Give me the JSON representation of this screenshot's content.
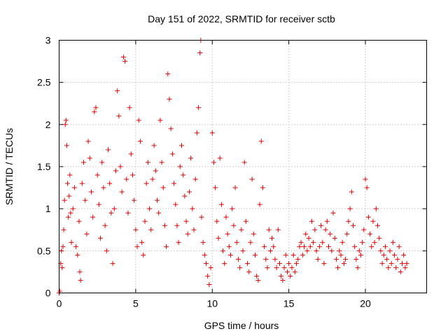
{
  "chart_data": {
    "type": "scatter",
    "title": "Day 151 of 2022, SRMTID for receiver sctb",
    "xlabel": "GPS time / hours",
    "ylabel": "SRMTID / TECUs",
    "xlim": [
      0,
      24
    ],
    "ylim": [
      0,
      3
    ],
    "xticks": [
      0,
      5,
      10,
      15,
      20
    ],
    "xtick_labels": [
      "0",
      "5",
      "10",
      "15",
      "20"
    ],
    "yticks": [
      0,
      0.5,
      1,
      1.5,
      2,
      2.5,
      3
    ],
    "ytick_labels": [
      "0",
      "0.5",
      "1",
      "1.5",
      "2",
      "2.5",
      "3"
    ],
    "grid": true,
    "marker": "+",
    "color": "#e00000",
    "series": [
      {
        "name": "SRMTID",
        "points": [
          [
            0.0,
            0.0
          ],
          [
            0.05,
            0.02
          ],
          [
            0.1,
            0.35
          ],
          [
            0.15,
            0.5
          ],
          [
            0.2,
            0.3
          ],
          [
            0.25,
            0.55
          ],
          [
            0.3,
            0.75
          ],
          [
            0.35,
            1.1
          ],
          [
            0.4,
            2.0
          ],
          [
            0.45,
            2.05
          ],
          [
            0.5,
            1.75
          ],
          [
            0.55,
            1.3
          ],
          [
            0.6,
            0.9
          ],
          [
            0.65,
            1.15
          ],
          [
            0.7,
            1.4
          ],
          [
            0.75,
            0.95
          ],
          [
            0.8,
            0.6
          ],
          [
            0.9,
            1.0
          ],
          [
            1.0,
            1.25
          ],
          [
            1.1,
            0.55
          ],
          [
            1.2,
            0.45
          ],
          [
            1.3,
            0.85
          ],
          [
            1.35,
            0.25
          ],
          [
            1.4,
            0.15
          ],
          [
            1.5,
            1.3
          ],
          [
            1.6,
            1.55
          ],
          [
            1.7,
            1.1
          ],
          [
            1.8,
            0.7
          ],
          [
            1.9,
            1.8
          ],
          [
            2.0,
            1.6
          ],
          [
            2.1,
            1.2
          ],
          [
            2.2,
            0.9
          ],
          [
            2.3,
            2.15
          ],
          [
            2.4,
            2.2
          ],
          [
            2.5,
            1.4
          ],
          [
            2.6,
            1.05
          ],
          [
            2.7,
            0.65
          ],
          [
            2.8,
            1.55
          ],
          [
            2.9,
            1.25
          ],
          [
            3.0,
            0.8
          ],
          [
            3.1,
            0.5
          ],
          [
            3.2,
            1.7
          ],
          [
            3.3,
            1.3
          ],
          [
            3.4,
            0.95
          ],
          [
            3.5,
            0.35
          ],
          [
            3.6,
            1.0
          ],
          [
            3.7,
            1.45
          ],
          [
            3.8,
            2.4
          ],
          [
            3.9,
            2.1
          ],
          [
            4.0,
            1.5
          ],
          [
            4.1,
            1.2
          ],
          [
            4.2,
            2.8
          ],
          [
            4.3,
            2.75
          ],
          [
            4.4,
            1.35
          ],
          [
            4.5,
            0.95
          ],
          [
            4.6,
            2.2
          ],
          [
            4.7,
            1.65
          ],
          [
            4.8,
            1.4
          ],
          [
            4.9,
            1.1
          ],
          [
            5.0,
            0.75
          ],
          [
            5.1,
            0.55
          ],
          [
            5.2,
            2.05
          ],
          [
            5.3,
            1.8
          ],
          [
            5.4,
            0.6
          ],
          [
            5.5,
            0.45
          ],
          [
            5.6,
            0.85
          ],
          [
            5.7,
            1.3
          ],
          [
            5.8,
            1.55
          ],
          [
            5.9,
            1.0
          ],
          [
            6.0,
            0.75
          ],
          [
            6.1,
            1.35
          ],
          [
            6.2,
            1.75
          ],
          [
            6.3,
            1.45
          ],
          [
            6.4,
            1.1
          ],
          [
            6.5,
            0.95
          ],
          [
            6.6,
            2.05
          ],
          [
            6.7,
            1.55
          ],
          [
            6.8,
            1.25
          ],
          [
            6.9,
            0.8
          ],
          [
            7.0,
            0.55
          ],
          [
            7.1,
            2.6
          ],
          [
            7.2,
            2.3
          ],
          [
            7.3,
            1.95
          ],
          [
            7.4,
            1.65
          ],
          [
            7.5,
            1.3
          ],
          [
            7.6,
            1.05
          ],
          [
            7.7,
            0.8
          ],
          [
            7.8,
            0.6
          ],
          [
            7.9,
            1.5
          ],
          [
            8.0,
            1.75
          ],
          [
            8.1,
            1.4
          ],
          [
            8.2,
            1.15
          ],
          [
            8.3,
            0.85
          ],
          [
            8.4,
            0.7
          ],
          [
            8.5,
            1.2
          ],
          [
            8.6,
            1.6
          ],
          [
            8.7,
            1.0
          ],
          [
            8.8,
            0.75
          ],
          [
            8.9,
            1.35
          ],
          [
            9.0,
            1.9
          ],
          [
            9.1,
            2.2
          ],
          [
            9.2,
            2.85
          ],
          [
            9.25,
            3.0
          ],
          [
            9.3,
            0.9
          ],
          [
            9.4,
            0.6
          ],
          [
            9.5,
            0.45
          ],
          [
            9.6,
            0.35
          ],
          [
            9.7,
            0.2
          ],
          [
            9.8,
            0.1
          ],
          [
            9.9,
            0.3
          ],
          [
            10.0,
            1.9
          ],
          [
            10.1,
            1.55
          ],
          [
            10.2,
            1.25
          ],
          [
            10.3,
            0.85
          ],
          [
            10.4,
            0.65
          ],
          [
            10.5,
            1.6
          ],
          [
            10.6,
            1.05
          ],
          [
            10.7,
            0.5
          ],
          [
            10.8,
            0.35
          ],
          [
            10.9,
            0.9
          ],
          [
            11.0,
            0.7
          ],
          [
            11.1,
            0.55
          ],
          [
            11.2,
            0.45
          ],
          [
            11.3,
            1.0
          ],
          [
            11.4,
            0.8
          ],
          [
            11.5,
            1.25
          ],
          [
            11.6,
            0.6
          ],
          [
            11.7,
            0.4
          ],
          [
            11.8,
            0.3
          ],
          [
            11.9,
            0.75
          ],
          [
            12.0,
            0.5
          ],
          [
            12.1,
            1.55
          ],
          [
            12.2,
            0.85
          ],
          [
            12.3,
            0.35
          ],
          [
            12.4,
            0.25
          ],
          [
            12.5,
            0.6
          ],
          [
            12.6,
            1.35
          ],
          [
            12.7,
            0.7
          ],
          [
            12.8,
            0.45
          ],
          [
            12.9,
            0.2
          ],
          [
            13.0,
            0.15
          ],
          [
            13.1,
            1.05
          ],
          [
            13.2,
            1.8
          ],
          [
            13.3,
            1.25
          ],
          [
            13.4,
            0.55
          ],
          [
            13.5,
            0.4
          ],
          [
            13.6,
            0.3
          ],
          [
            13.7,
            0.75
          ],
          [
            13.8,
            0.5
          ],
          [
            13.9,
            0.65
          ],
          [
            14.0,
            0.55
          ],
          [
            14.1,
            0.4
          ],
          [
            14.2,
            0.3
          ],
          [
            14.3,
            0.75
          ],
          [
            14.4,
            0.35
          ],
          [
            14.5,
            0.2
          ],
          [
            14.6,
            0.15
          ],
          [
            14.7,
            0.3
          ],
          [
            14.8,
            0.45
          ],
          [
            14.9,
            0.25
          ],
          [
            15.0,
            0.35
          ],
          [
            15.1,
            0.2
          ],
          [
            15.2,
            0.3
          ],
          [
            15.3,
            0.45
          ],
          [
            15.4,
            0.25
          ],
          [
            15.5,
            0.35
          ],
          [
            15.6,
            0.4
          ],
          [
            15.7,
            0.55
          ],
          [
            15.8,
            0.6
          ],
          [
            15.9,
            0.45
          ],
          [
            16.0,
            0.55
          ],
          [
            16.1,
            0.7
          ],
          [
            16.2,
            0.5
          ],
          [
            16.3,
            0.65
          ],
          [
            16.4,
            0.55
          ],
          [
            16.5,
            0.85
          ],
          [
            16.6,
            0.6
          ],
          [
            16.7,
            0.75
          ],
          [
            16.8,
            0.5
          ],
          [
            16.9,
            0.4
          ],
          [
            17.0,
            0.55
          ],
          [
            17.1,
            0.8
          ],
          [
            17.2,
            0.6
          ],
          [
            17.3,
            0.35
          ],
          [
            17.4,
            0.75
          ],
          [
            17.5,
            0.85
          ],
          [
            17.6,
            0.55
          ],
          [
            17.7,
            0.7
          ],
          [
            17.8,
            0.5
          ],
          [
            17.9,
            0.95
          ],
          [
            18.0,
            0.65
          ],
          [
            18.1,
            0.4
          ],
          [
            18.2,
            0.3
          ],
          [
            18.3,
            0.5
          ],
          [
            18.4,
            0.45
          ],
          [
            18.5,
            0.6
          ],
          [
            18.6,
            0.35
          ],
          [
            18.7,
            0.4
          ],
          [
            18.8,
            0.7
          ],
          [
            18.9,
            0.85
          ],
          [
            19.0,
            1.0
          ],
          [
            19.1,
            1.2
          ],
          [
            19.2,
            0.8
          ],
          [
            19.3,
            0.55
          ],
          [
            19.4,
            0.4
          ],
          [
            19.5,
            0.3
          ],
          [
            19.6,
            0.5
          ],
          [
            19.7,
            0.45
          ],
          [
            19.8,
            0.6
          ],
          [
            19.9,
            0.75
          ],
          [
            20.0,
            1.35
          ],
          [
            20.1,
            1.25
          ],
          [
            20.2,
            0.9
          ],
          [
            20.3,
            0.7
          ],
          [
            20.4,
            0.55
          ],
          [
            20.5,
            0.85
          ],
          [
            20.6,
            0.6
          ],
          [
            20.7,
            1.0
          ],
          [
            20.8,
            0.8
          ],
          [
            20.9,
            0.65
          ],
          [
            21.0,
            0.5
          ],
          [
            21.1,
            0.35
          ],
          [
            21.2,
            0.45
          ],
          [
            21.3,
            0.55
          ],
          [
            21.4,
            0.4
          ],
          [
            21.5,
            0.3
          ],
          [
            21.6,
            0.5
          ],
          [
            21.7,
            0.35
          ],
          [
            21.8,
            0.6
          ],
          [
            21.9,
            0.45
          ],
          [
            22.0,
            0.3
          ],
          [
            22.1,
            0.4
          ],
          [
            22.2,
            0.55
          ],
          [
            22.3,
            0.25
          ],
          [
            22.4,
            0.35
          ],
          [
            22.5,
            0.45
          ],
          [
            22.6,
            0.3
          ],
          [
            22.7,
            0.35
          ]
        ]
      }
    ]
  }
}
